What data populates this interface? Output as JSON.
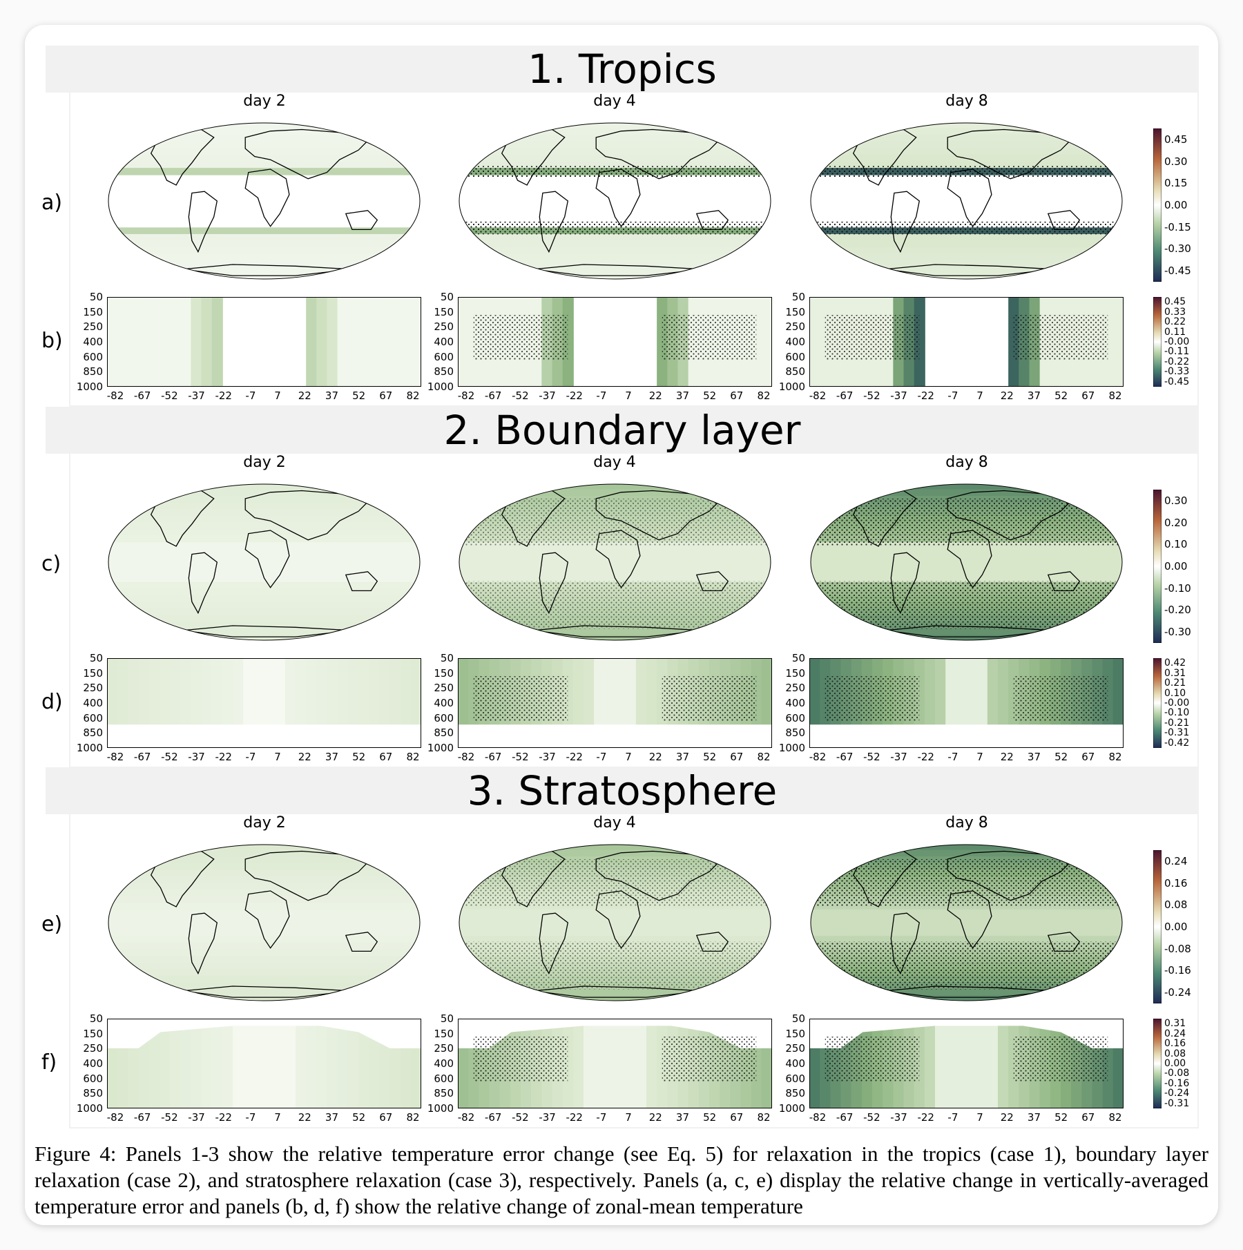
{
  "sections": [
    {
      "title": "1. Tropics",
      "row_labels": [
        "a)",
        "b)"
      ],
      "days": [
        "day 2",
        "day 4",
        "day 8"
      ],
      "map_cbar_ticks": [
        "0.45",
        "0.30",
        "0.15",
        "0.00",
        "-0.15",
        "-0.30",
        "-0.45"
      ],
      "zonal_cbar_ticks": [
        "0.45",
        "0.33",
        "0.22",
        "0.11",
        "-0.00",
        "-0.11",
        "-0.22",
        "-0.33",
        "-0.45"
      ]
    },
    {
      "title": "2. Boundary layer",
      "row_labels": [
        "c)",
        "d)"
      ],
      "days": [
        "day 2",
        "day 4",
        "day 8"
      ],
      "map_cbar_ticks": [
        "0.30",
        "0.20",
        "0.10",
        "0.00",
        "-0.10",
        "-0.20",
        "-0.30"
      ],
      "zonal_cbar_ticks": [
        "0.42",
        "0.31",
        "0.21",
        "0.10",
        "-0.00",
        "-0.10",
        "-0.21",
        "-0.31",
        "-0.42"
      ]
    },
    {
      "title": "3. Stratosphere",
      "row_labels": [
        "e)",
        "f)"
      ],
      "days": [
        "day 2",
        "day 4",
        "day 8"
      ],
      "map_cbar_ticks": [
        "0.24",
        "0.16",
        "0.08",
        "0.00",
        "-0.08",
        "-0.16",
        "-0.24"
      ],
      "zonal_cbar_ticks": [
        "0.31",
        "0.24",
        "0.16",
        "0.08",
        "0.00",
        "-0.08",
        "-0.16",
        "-0.24",
        "-0.31"
      ]
    }
  ],
  "zonal_yticks": [
    "50",
    "150",
    "250",
    "400",
    "600",
    "850",
    "1000"
  ],
  "zonal_xticks": [
    "-82",
    "-67",
    "-52",
    "-37",
    "-22",
    "-7",
    "7",
    "22",
    "37",
    "52",
    "67",
    "82"
  ],
  "caption": "Figure 4: Panels 1-3 show the relative temperature error change (see Eq. 5) for relaxation in the tropics (case 1), boundary layer relaxation (case 2), and stratosphere relaxation (case 3), respectively. Panels (a, c, e) display the relative change in vertically-averaged temperature error and panels (b, d, f) show the relative change of zonal-mean temperature",
  "colors": {
    "dark_navy": "#1e2a55",
    "teal": "#3a6b5a",
    "green": "#7fa876",
    "pale": "#e8efde",
    "white": "#ffffff",
    "orange": "#c07a3c",
    "maroon": "#5a1f3a"
  }
}
